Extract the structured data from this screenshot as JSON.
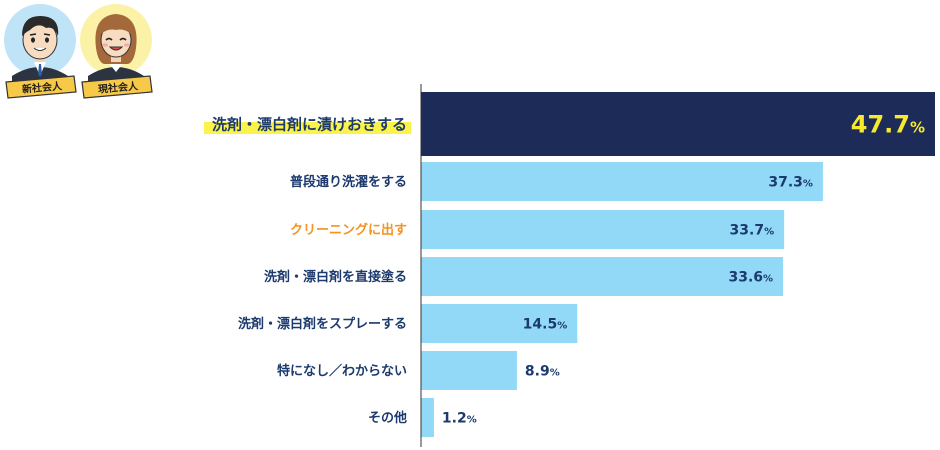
{
  "avatars": {
    "left_ribbon": "新社会人",
    "right_ribbon": "現社会人"
  },
  "chart_data": {
    "type": "bar",
    "orientation": "horizontal",
    "categories": [
      "洗剤・漂白剤に漬けおきする",
      "普段通り洗濯をする",
      "クリーニングに出す",
      "洗剤・漂白剤を直接塗る",
      "洗剤・漂白剤をスプレーする",
      "特になし／わからない",
      "その他"
    ],
    "values": [
      47.7,
      37.3,
      33.7,
      33.6,
      14.5,
      8.9,
      1.2
    ],
    "unit": "%",
    "xlim": [
      0,
      47.7
    ],
    "highlight_index": 0,
    "colors": {
      "bar_highlight": "#1c2b57",
      "bar_default": "#92d8f7",
      "label_default": "#1c3a6e",
      "label_orange": "#f5931e",
      "value_highlight": "#f7e92e",
      "value_default": "#1c3a6e",
      "highlight_bg": "#fbf34a",
      "axis": "#333333"
    },
    "orange_label_index": 2
  }
}
